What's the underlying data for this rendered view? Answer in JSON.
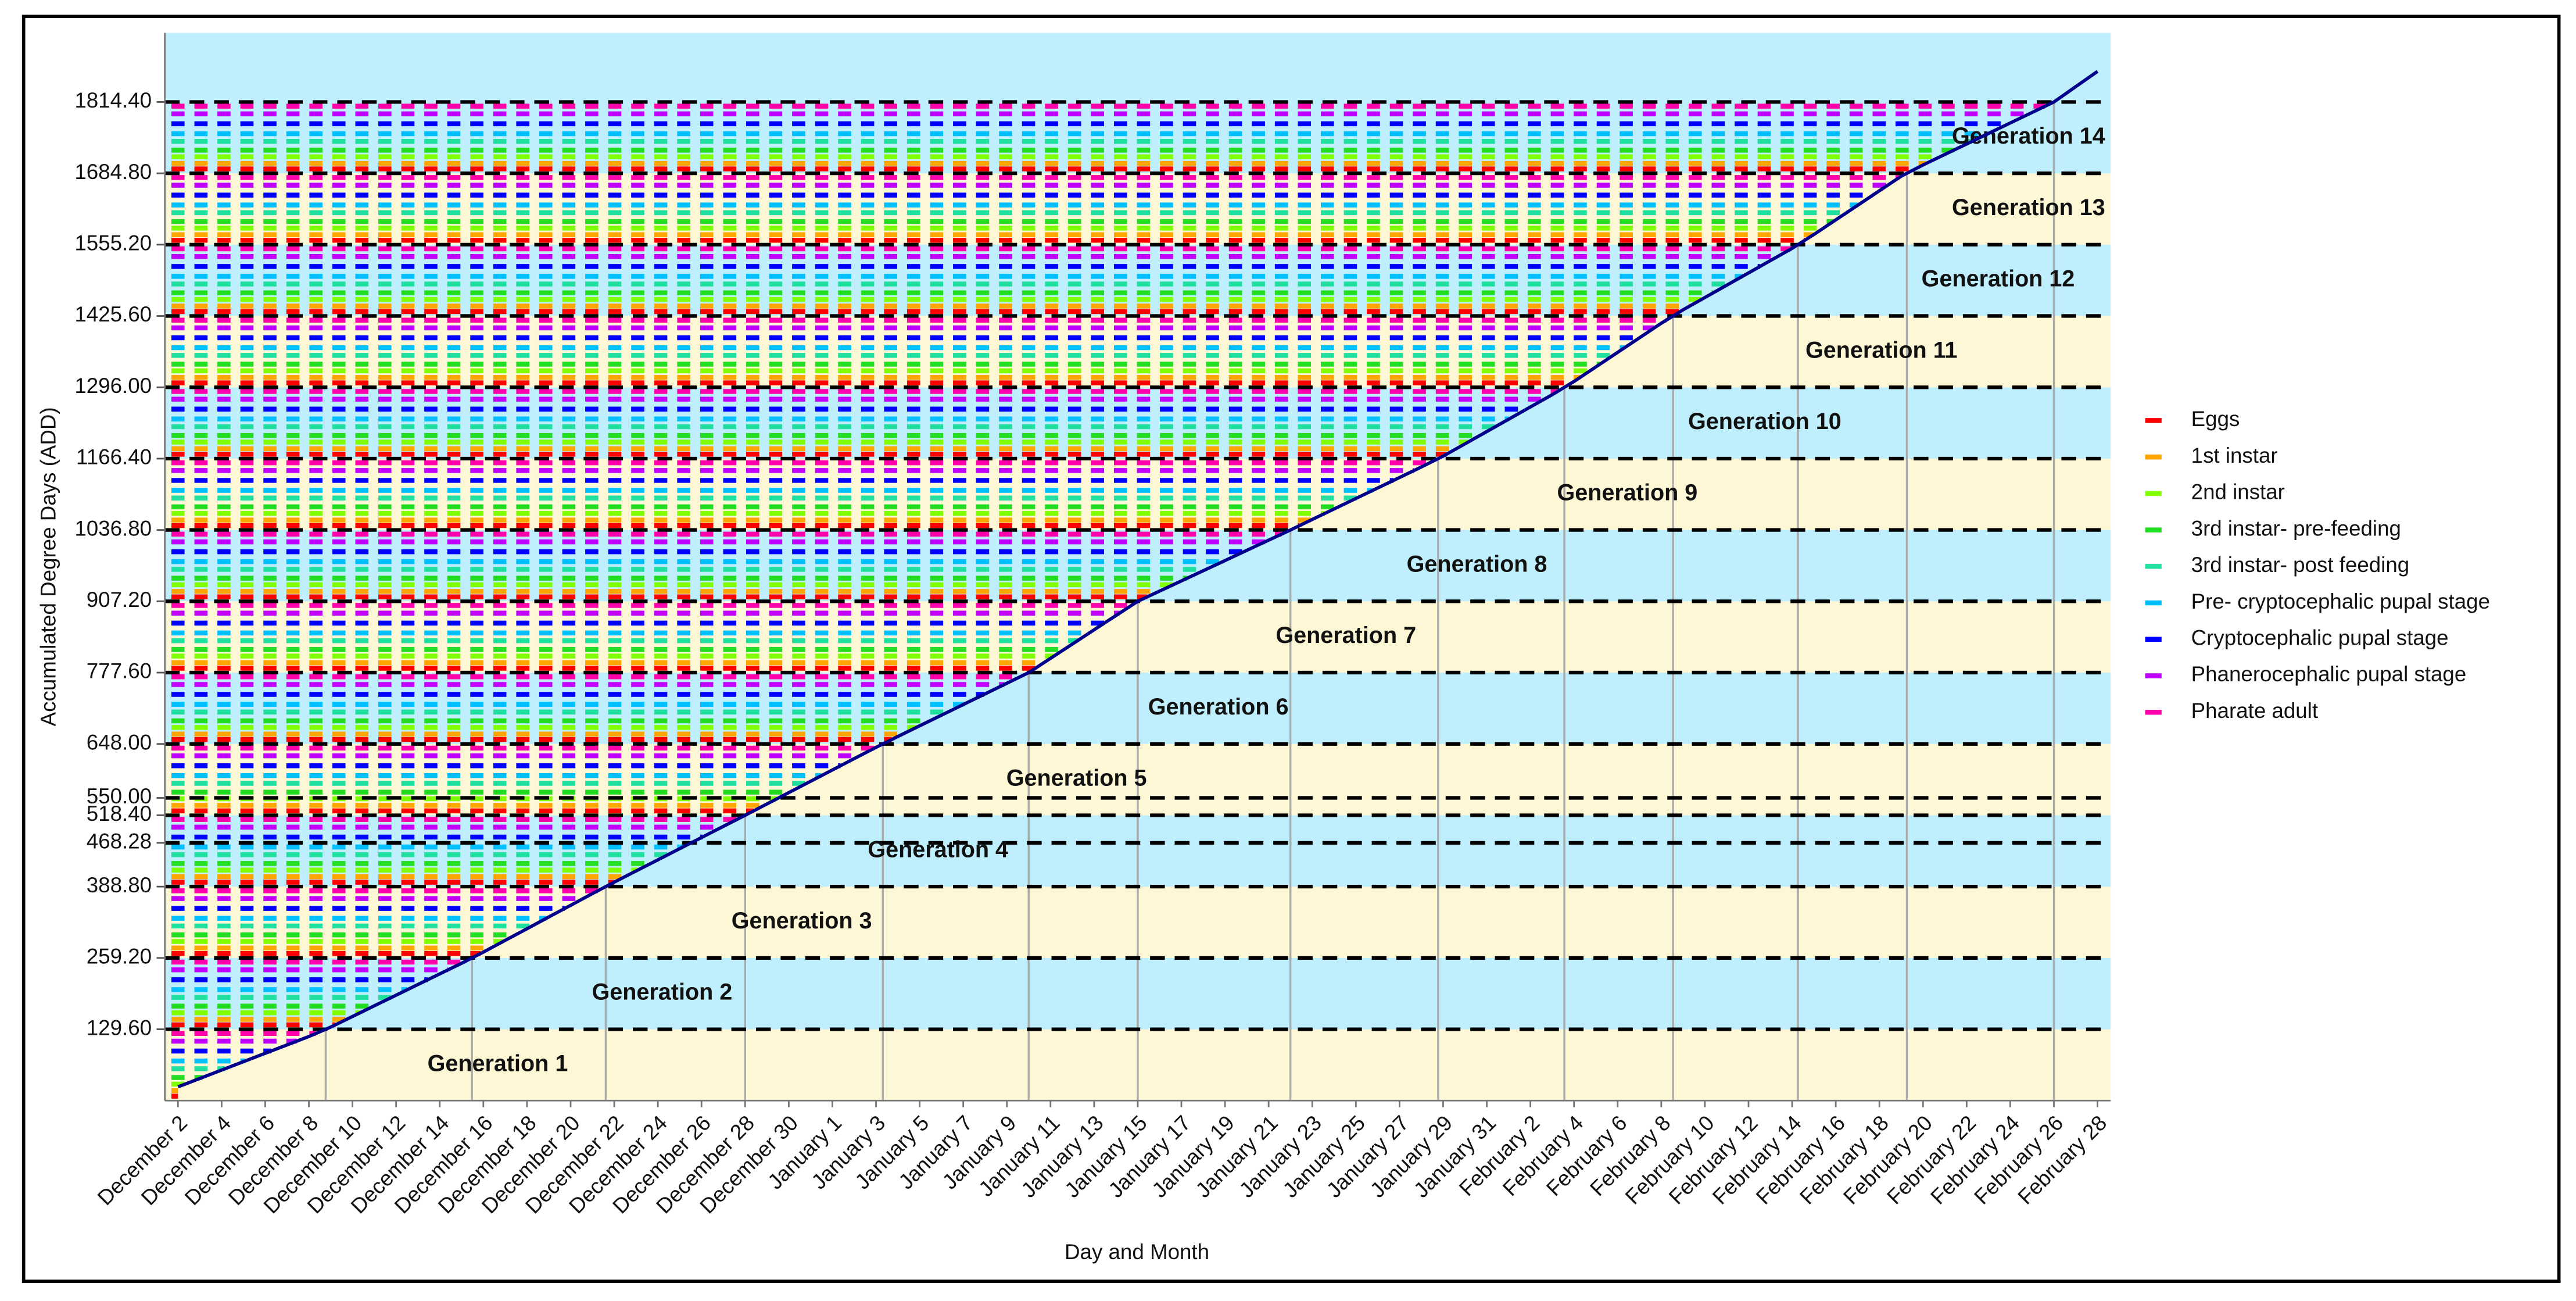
{
  "chart_data": {
    "type": "line",
    "y_label": "Accumulated Degree Days (ADD)",
    "x_label": "Day and Month",
    "categories": [
      "December 2",
      null,
      "December 4",
      null,
      "December 6",
      null,
      "December 8",
      null,
      "December 10",
      null,
      "December 12",
      null,
      "December 14",
      null,
      "December 16",
      null,
      "December 18",
      null,
      "December 20",
      null,
      "December 22",
      null,
      "December 24",
      null,
      "December 26",
      null,
      "December 28",
      null,
      "December 30",
      null,
      "January 1",
      null,
      "January 3",
      null,
      "January 5",
      null,
      "January 7",
      null,
      "January 9",
      null,
      "January 11",
      null,
      "January 13",
      null,
      "January 15",
      null,
      "January 17",
      null,
      "January 19",
      null,
      "January 21",
      null,
      "January 23",
      null,
      "January 25",
      null,
      "January 27",
      null,
      "January 29",
      null,
      "January 31",
      null,
      "February 2",
      null,
      "February 4",
      null,
      "February 6",
      null,
      "February 8",
      null,
      "February 10",
      null,
      "February 12",
      null,
      "February 14",
      null,
      "February 16",
      null,
      "February 18",
      null,
      "February 20",
      null,
      "February 22",
      null,
      "February 24",
      null,
      "February 26",
      null,
      "February 28"
    ],
    "values": [
      25,
      40.2,
      55.5,
      70.7,
      86,
      101.2,
      116.4,
      133.5,
      152.8,
      172.2,
      191.5,
      210.9,
      230.2,
      249.5,
      269.8,
      291.1,
      312.3,
      333.6,
      354.8,
      376.1,
      396.9,
      417.2,
      437.4,
      457.7,
      477.9,
      498.2,
      518.4,
      539,
      559.5,
      580.1,
      600.7,
      621.3,
      641.8,
      661.5,
      680.9,
      700.2,
      719.6,
      738.9,
      758.3,
      777.6,
      803.5,
      829.4,
      855.4,
      881.3,
      907.2,
      925.7,
      944.2,
      962.7,
      981.2,
      999.8,
      1018.3,
      1036.8,
      1055.9,
      1074.9,
      1094,
      1113.1,
      1132.1,
      1151.2,
      1170.9,
      1193.2,
      1215.6,
      1237.9,
      1260.3,
      1282.6,
      1306.6,
      1333,
      1359.5,
      1385.9,
      1412.4,
      1436.8,
      1459.1,
      1481.5,
      1503.8,
      1526.2,
      1548.5,
      1573.7,
      1600.2,
      1626.6,
      1653.1,
      1679.5,
      1700,
      1719.1,
      1738.1,
      1757.2,
      1776.3,
      1795.3,
      1814.4,
      1842.2,
      1870
    ],
    "color": "#00008b",
    "ylim": [
      0,
      1940
    ],
    "yticks": [
      {
        "value": 129.6,
        "label": "129.60"
      },
      {
        "value": 259.2,
        "label": "259.20"
      },
      {
        "value": 388.8,
        "label": "388.80"
      },
      {
        "value": 468.28,
        "label": "468.28"
      },
      {
        "value": 518.4,
        "label": "518.40"
      },
      {
        "value": 550,
        "label": "550.00"
      },
      {
        "value": 648,
        "label": "648.00"
      },
      {
        "value": 777.6,
        "label": "777.60"
      },
      {
        "value": 907.2,
        "label": "907.20"
      },
      {
        "value": 1036.8,
        "label": "1036.80"
      },
      {
        "value": 1166.4,
        "label": "1166.40"
      },
      {
        "value": 1296,
        "label": "1296.00"
      },
      {
        "value": 1425.6,
        "label": "1425.60"
      },
      {
        "value": 1555.2,
        "label": "1555.20"
      },
      {
        "value": 1684.8,
        "label": "1684.80"
      },
      {
        "value": 1814.4,
        "label": "1814.40"
      }
    ],
    "grid": true,
    "band_colors": [
      "#fdf7d6",
      "#bfeefc"
    ],
    "bands": [
      {
        "label": "Generation 1",
        "from": 0,
        "to": 129.6
      },
      {
        "label": "Generation 2",
        "from": 129.6,
        "to": 259.2
      },
      {
        "label": "Generation 3",
        "from": 259.2,
        "to": 388.8
      },
      {
        "label": "Generation 4",
        "from": 388.8,
        "to": 518.4
      },
      {
        "label": "Generation 5",
        "from": 518.4,
        "to": 648
      },
      {
        "label": "Generation 6",
        "from": 648,
        "to": 777.6
      },
      {
        "label": "Generation 7",
        "from": 777.6,
        "to": 907.2
      },
      {
        "label": "Generation 8",
        "from": 907.2,
        "to": 1036.8
      },
      {
        "label": "Generation 9",
        "from": 1036.8,
        "to": 1166.4
      },
      {
        "label": "Generation 10",
        "from": 1166.4,
        "to": 1296
      },
      {
        "label": "Generation 11",
        "from": 1296,
        "to": 1425.6
      },
      {
        "label": "Generation 12",
        "from": 1425.6,
        "to": 1555.2
      },
      {
        "label": "Generation 13",
        "from": 1555.2,
        "to": 1684.8
      },
      {
        "label": "Generation 14",
        "from": 1684.8,
        "to": 1814.4
      }
    ],
    "stages": [
      {
        "name": "Eggs",
        "color": "#ff0000",
        "value": 8
      },
      {
        "name": "1st instar",
        "color": "#ffa500",
        "value": 18
      },
      {
        "name": "2nd instar",
        "color": "#80ff00",
        "value": 30
      },
      {
        "name": "3rd instar- pre-feeding",
        "color": "#22dd22",
        "value": 42
      },
      {
        "name": "3rd instar- post feeding",
        "color": "#20e0a0",
        "value": 58
      },
      {
        "name": "Pre- cryptocephalic pupal stage",
        "color": "#00bfff",
        "value": 72
      },
      {
        "name": "Cryptocephalic pupal stage",
        "color": "#0000ff",
        "value": 90
      },
      {
        "name": "Phanerocephalic pupal stage",
        "color": "#c000ff",
        "value": 108
      },
      {
        "name": "Pharate adult",
        "color": "#ff00aa",
        "value": 122
      }
    ]
  }
}
